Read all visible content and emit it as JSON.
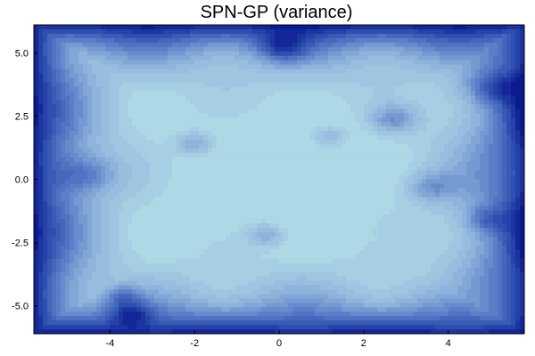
{
  "chart_data": {
    "type": "heatmap",
    "title": "SPN-GP (variance)",
    "xlabel": "",
    "ylabel": "",
    "xlim": [
      -5.8,
      5.8
    ],
    "ylim": [
      -6.1,
      6.1
    ],
    "x_ticks": [
      -4,
      -2,
      0,
      2,
      4
    ],
    "y_ticks": [
      5.0,
      2.5,
      0.0,
      -2.5,
      -5.0
    ],
    "x_tick_labels": [
      "-4",
      "-2",
      "0",
      "2",
      "4"
    ],
    "y_tick_labels": [
      "5.0",
      "2.5",
      "0.0",
      "-2.5",
      "-5.0"
    ],
    "colormap": [
      "#add8e6",
      "#8fb4dc",
      "#5a7fc8",
      "#2e4fb0",
      "#0a1a90"
    ],
    "contour_levels": 16,
    "grid": false,
    "legend": "none",
    "features": [
      {
        "x": 0,
        "y": 0,
        "value": "low variance (center)"
      },
      {
        "x": 2.7,
        "y": 2.4,
        "value": "local peak"
      },
      {
        "x": 3.6,
        "y": -0.3,
        "value": "local peak"
      },
      {
        "x": -3.5,
        "y": -5.3,
        "value": "local peak"
      },
      {
        "x": -2.0,
        "y": 1.4,
        "value": "local peak"
      },
      {
        "x": -0.3,
        "y": -2.2,
        "value": "local peak"
      },
      {
        "x": 1.2,
        "y": 1.7,
        "value": "local peak"
      },
      {
        "x": 0.1,
        "y": 5.2,
        "value": "local peak"
      },
      {
        "x": -5.8,
        "y": 0.4,
        "value": "edge peak"
      }
    ]
  }
}
